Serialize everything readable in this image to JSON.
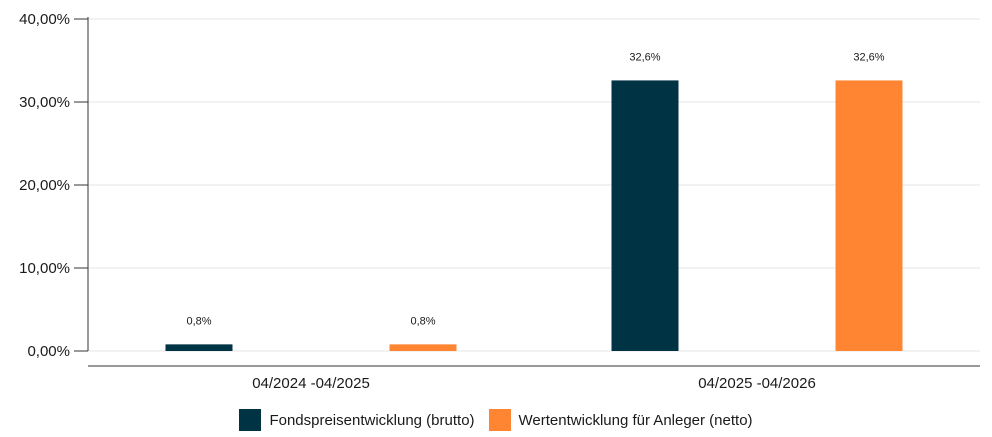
{
  "chart_data": {
    "type": "bar",
    "categories": [
      "04/2024 -04/2025",
      "04/2025 -04/2026"
    ],
    "series": [
      {
        "name": "Fondspreisentwicklung (brutto)",
        "values": [
          0.8,
          32.6
        ],
        "labels": [
          "0,8%",
          "32,6%"
        ],
        "color": "#003343"
      },
      {
        "name": "Wertentwicklung für Anleger (netto)",
        "values": [
          0.8,
          32.6
        ],
        "labels": [
          "0,8%",
          "32,6%"
        ],
        "color": "#FF8533"
      }
    ],
    "ylim": [
      0,
      40
    ],
    "yticks": [
      0,
      10,
      20,
      30,
      40
    ],
    "ytick_labels": [
      "0,00%",
      "10,00%",
      "20,00%",
      "30,00%",
      "40,00%"
    ],
    "grid": true,
    "legend_position": "bottom",
    "title": "",
    "xlabel": "",
    "ylabel": ""
  }
}
